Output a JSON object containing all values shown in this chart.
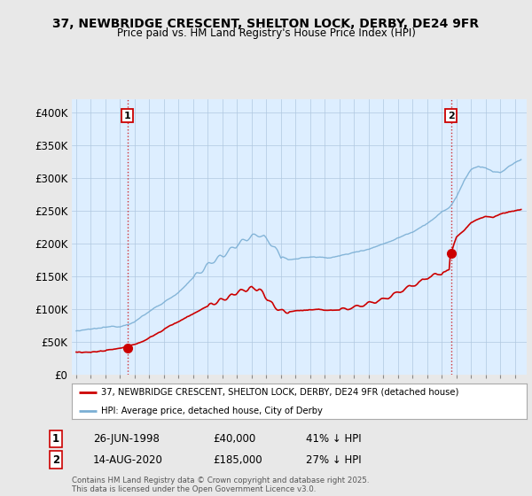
{
  "title": "37, NEWBRIDGE CRESCENT, SHELTON LOCK, DERBY, DE24 9FR",
  "subtitle": "Price paid vs. HM Land Registry's House Price Index (HPI)",
  "legend_label_red": "37, NEWBRIDGE CRESCENT, SHELTON LOCK, DERBY, DE24 9FR (detached house)",
  "legend_label_blue": "HPI: Average price, detached house, City of Derby",
  "footnote": "Contains HM Land Registry data © Crown copyright and database right 2025.\nThis data is licensed under the Open Government Licence v3.0.",
  "annotation1_label": "1",
  "annotation1_date": "26-JUN-1998",
  "annotation1_price": "£40,000",
  "annotation1_hpi": "41% ↓ HPI",
  "annotation2_label": "2",
  "annotation2_date": "14-AUG-2020",
  "annotation2_price": "£185,000",
  "annotation2_hpi": "27% ↓ HPI",
  "red_color": "#cc0000",
  "blue_color": "#7bafd4",
  "plot_bg_color": "#ddeeff",
  "background_color": "#e8e8e8",
  "ylim": [
    0,
    420000
  ],
  "yticks": [
    0,
    50000,
    100000,
    150000,
    200000,
    250000,
    300000,
    350000,
    400000
  ],
  "ytick_labels": [
    "£0",
    "£50K",
    "£100K",
    "£150K",
    "£200K",
    "£250K",
    "£300K",
    "£350K",
    "£400K"
  ],
  "sale1_x": 1998.5,
  "sale1_y": 40000,
  "sale2_x": 2020.62,
  "sale2_y": 185000,
  "xlim_left": 1994.7,
  "xlim_right": 2025.8
}
